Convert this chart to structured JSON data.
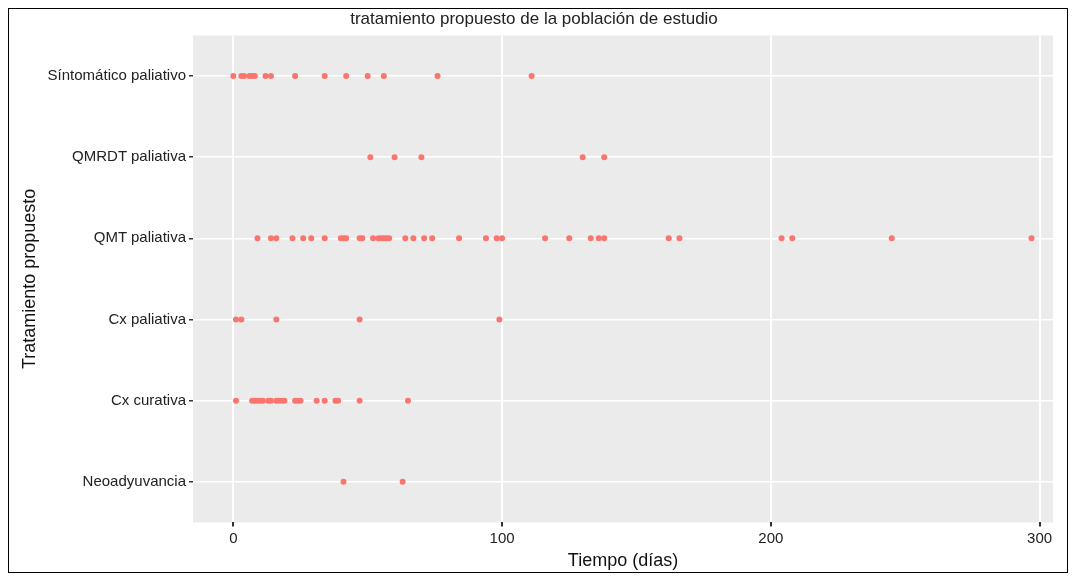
{
  "chart_data": {
    "type": "scatter",
    "title": "tratamiento propuesto de la población de estudio",
    "xlabel": "Tiempo (días)",
    "ylabel": "Tratamiento propuesto",
    "orientation": "horizontal",
    "categories": [
      "Síntomático paliativo",
      "QMRDT paliativa",
      "QMT paliativa",
      "Cx paliativa",
      "Cx curativa",
      "Neoadyuvancia"
    ],
    "series": [
      {
        "color": "#f8766d",
        "x": [
          "Síntomático paliativo",
          "Síntomático paliativo",
          "Síntomático paliativo",
          "Síntomático paliativo",
          "Síntomático paliativo",
          "Síntomático paliativo",
          "Síntomático paliativo",
          "Síntomático paliativo",
          "Síntomático paliativo",
          "Síntomático paliativo",
          "Síntomático paliativo",
          "Síntomático paliativo",
          "Síntomático paliativo",
          "Síntomático paliativo",
          "Síntomático paliativo"
        ],
        "values": [
          0,
          3,
          4,
          6,
          7,
          8,
          12,
          14,
          23,
          34,
          42,
          50,
          56,
          76,
          111
        ]
      },
      {
        "color": "#f8766d",
        "x": [
          "QMRDT paliativa",
          "QMRDT paliativa",
          "QMRDT paliativa",
          "QMRDT paliativa",
          "QMRDT paliativa"
        ],
        "values": [
          51,
          60,
          70,
          130,
          138
        ]
      },
      {
        "color": "#f8766d",
        "x": [
          "QMT paliativa",
          "QMT paliativa",
          "QMT paliativa",
          "QMT paliativa",
          "QMT paliativa",
          "QMT paliativa",
          "QMT paliativa",
          "QMT paliativa",
          "QMT paliativa",
          "QMT paliativa",
          "QMT paliativa",
          "QMT paliativa",
          "QMT paliativa",
          "QMT paliativa",
          "QMT paliativa",
          "QMT paliativa",
          "QMT paliativa",
          "QMT paliativa",
          "QMT paliativa",
          "QMT paliativa",
          "QMT paliativa",
          "QMT paliativa",
          "QMT paliativa",
          "QMT paliativa",
          "QMT paliativa",
          "QMT paliativa",
          "QMT paliativa",
          "QMT paliativa",
          "QMT paliativa",
          "QMT paliativa",
          "QMT paliativa",
          "QMT paliativa",
          "QMT paliativa",
          "QMT paliativa",
          "QMT paliativa",
          "QMT paliativa",
          "QMT paliativa"
        ],
        "values": [
          9,
          14,
          16,
          22,
          26,
          29,
          34,
          40,
          41,
          42,
          47,
          48,
          52,
          54,
          55,
          56,
          57,
          58,
          64,
          67,
          71,
          74,
          84,
          94,
          98,
          100,
          116,
          125,
          133,
          136,
          138,
          162,
          166,
          204,
          208,
          245,
          297
        ]
      },
      {
        "color": "#f8766d",
        "x": [
          "Cx paliativa",
          "Cx paliativa",
          "Cx paliativa",
          "Cx paliativa",
          "Cx paliativa"
        ],
        "values": [
          1,
          3,
          16,
          47,
          99
        ]
      },
      {
        "color": "#f8766d",
        "x": [
          "Cx curativa",
          "Cx curativa",
          "Cx curativa",
          "Cx curativa",
          "Cx curativa",
          "Cx curativa",
          "Cx curativa",
          "Cx curativa",
          "Cx curativa",
          "Cx curativa",
          "Cx curativa",
          "Cx curativa",
          "Cx curativa",
          "Cx curativa",
          "Cx curativa",
          "Cx curativa",
          "Cx curativa",
          "Cx curativa",
          "Cx curativa",
          "Cx curativa",
          "Cx curativa"
        ],
        "values": [
          1,
          7,
          8,
          9,
          10,
          11,
          13,
          14,
          16,
          17,
          18,
          19,
          23,
          24,
          25,
          31,
          34,
          38,
          39,
          47,
          65
        ]
      },
      {
        "color": "#f8766d",
        "x": [
          "Neoadyuvancia",
          "Neoadyuvancia"
        ],
        "values": [
          41,
          63
        ]
      }
    ],
    "xlim": [
      -15,
      305
    ],
    "xticks": [
      0,
      100,
      200,
      300
    ],
    "grid": true,
    "marker": "circle",
    "legend": false
  }
}
